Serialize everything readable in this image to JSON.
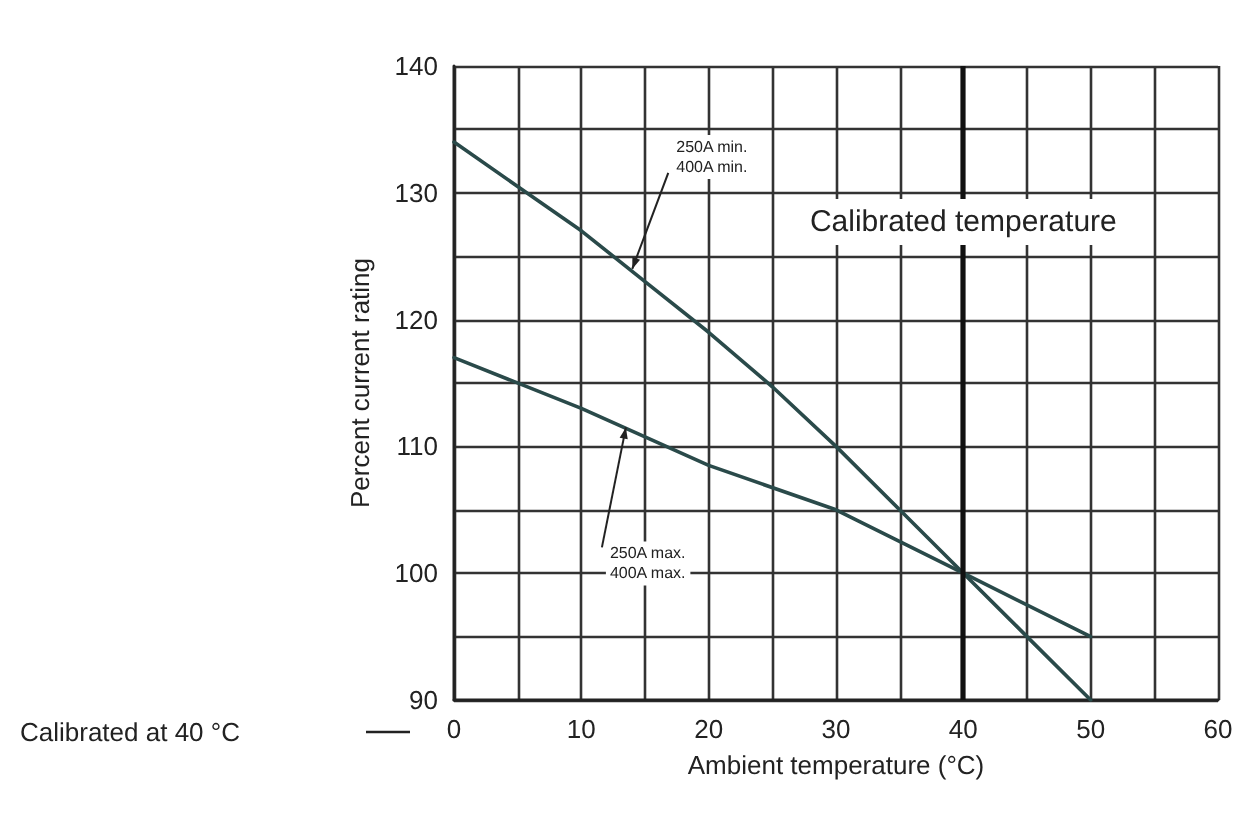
{
  "chart_data": {
    "type": "line",
    "xlabel": "Ambient temperature (°C)",
    "ylabel": "Percent current rating",
    "x": [
      0,
      5,
      10,
      15,
      20,
      25,
      30,
      35,
      40,
      45,
      50
    ],
    "series": [
      {
        "color": "#2a4a4a",
        "values": [
          134,
          130.5,
          127,
          123,
          119,
          114.7,
          110,
          105,
          100,
          95,
          90
        ]
      },
      {
        "color": "#2a4a4a",
        "x": [
          0,
          10,
          20,
          30,
          40,
          50
        ],
        "values": [
          117,
          113,
          108.5,
          105,
          100,
          95
        ]
      }
    ],
    "xlim": [
      0,
      60
    ],
    "xticks": [
      0,
      10,
      20,
      30,
      40,
      50,
      60
    ],
    "ylim": [
      90,
      140
    ],
    "yticks": [
      90,
      100,
      110,
      120,
      130,
      140
    ],
    "grid": true,
    "marker": "none",
    "line_style": "solid",
    "ref_lines": [
      {
        "axis": "x",
        "value": 40,
        "label": "Calibrated temperature",
        "color": "#111111"
      }
    ],
    "annotations": [
      {
        "text": "250A min.\n400A min.",
        "x": 14,
        "y": 124
      },
      {
        "text": "250A max.\n400A max.",
        "x": 13.5,
        "y": 111.5
      },
      "Calibrated at 40 °C"
    ]
  }
}
